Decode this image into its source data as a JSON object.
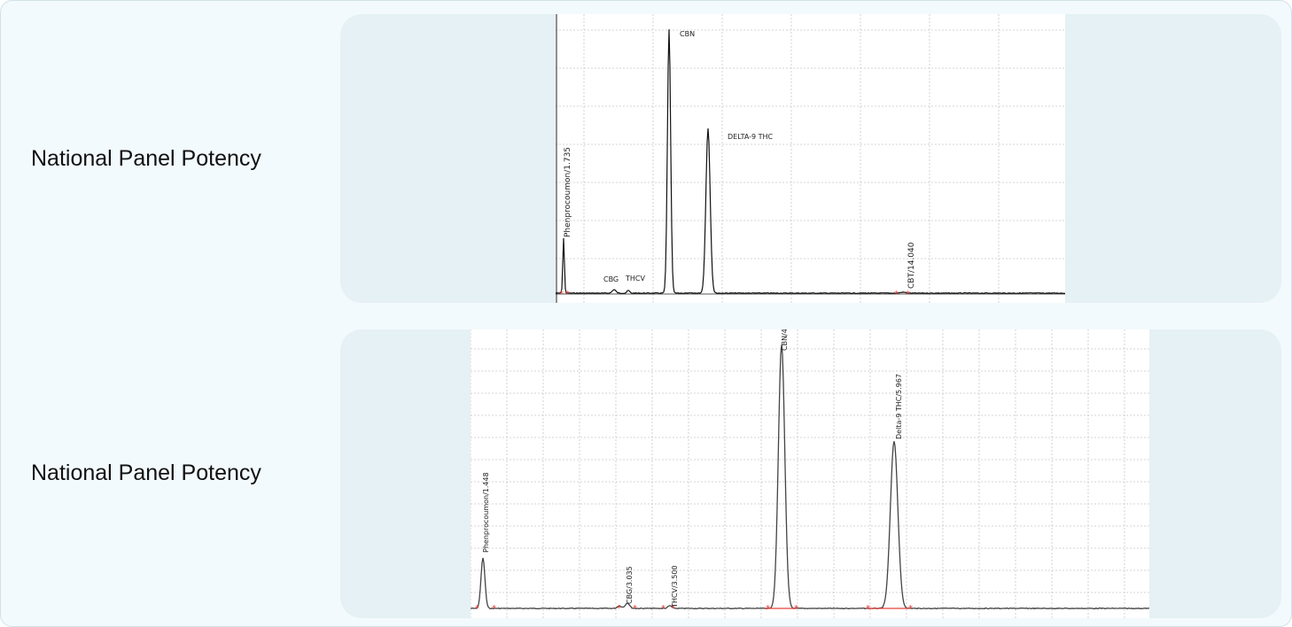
{
  "rows": [
    {
      "label": "National Panel Potency"
    },
    {
      "label": "National Panel Potency"
    }
  ],
  "colors": {
    "panel_background": "#f3fafd",
    "card_background": "#e5f1f4",
    "trace": "#333333",
    "grid": "#c8c8c8",
    "integration_marker": "#e8413c"
  },
  "chart_data": [
    {
      "type": "line",
      "title": "",
      "xlabel": "",
      "ylabel": "",
      "grid": true,
      "peaks": [
        {
          "label": "Phenprocoumon/1.735"
        },
        {
          "label": "CBG"
        },
        {
          "label": "THCV"
        },
        {
          "label": "CBN"
        },
        {
          "label": "DELTA-9 THC"
        },
        {
          "label": "CBT/14.040"
        }
      ]
    },
    {
      "type": "line",
      "title": "",
      "xlabel": "",
      "ylabel": "",
      "grid": true,
      "peaks": [
        {
          "label": "Phenprocoumon/1.448"
        },
        {
          "label": "CBG/3.035"
        },
        {
          "label": "THCV/3.500"
        },
        {
          "label": "CBN/4."
        },
        {
          "label": "Delta-9 THC/5.967"
        }
      ]
    }
  ]
}
